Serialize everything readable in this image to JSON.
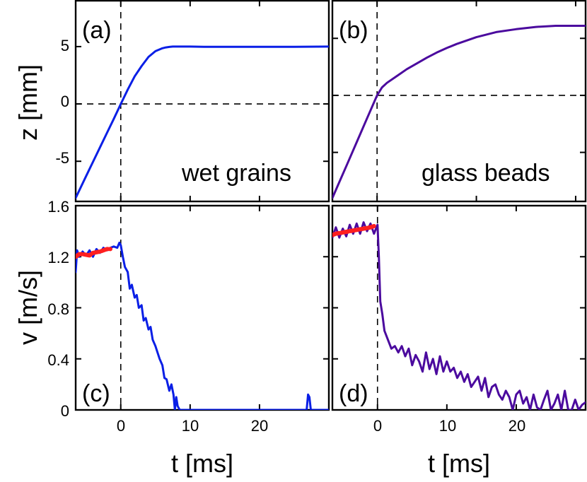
{
  "colors": {
    "wet": "#0a1fe6",
    "glass": "#4b0a9e",
    "fit": "#ff1f1f",
    "frame": "#000000"
  },
  "chart_data": [
    {
      "type": "line",
      "panel": "(a)",
      "annotation": "wet grains",
      "ylabel": "z [mm]",
      "xlabel": "",
      "xlim": [
        -6.5,
        30
      ],
      "ylim": [
        -8.5,
        9
      ],
      "yticks": [
        5,
        0,
        -5
      ],
      "ytick_labels": [
        "5",
        "0",
        "-5"
      ],
      "xticks": [
        0,
        10,
        20
      ],
      "xtick_labels": [
        "",
        "",
        ""
      ],
      "color_key": "wet",
      "reference_lines": {
        "x": 0,
        "y": 0
      },
      "series": [
        {
          "x": [
            -6.5,
            -5,
            -4,
            -3,
            -2,
            -1,
            0,
            1,
            2,
            3,
            4,
            5,
            6,
            6.5,
            7,
            7.5,
            8,
            9,
            10,
            12,
            15,
            20,
            25,
            30
          ],
          "y": [
            -8.2,
            -6.3,
            -5.05,
            -3.8,
            -2.55,
            -1.3,
            0,
            1.25,
            2.4,
            3.3,
            4.1,
            4.6,
            4.85,
            4.93,
            4.97,
            5.0,
            5.0,
            5.0,
            5.0,
            4.98,
            4.98,
            4.98,
            4.98,
            5.0
          ]
        }
      ]
    },
    {
      "type": "line",
      "panel": "(b)",
      "annotation": "glass beads",
      "ylabel": "",
      "xlabel": "",
      "xlim": [
        -4.5,
        21
      ],
      "ylim": [
        -9.3,
        8.3
      ],
      "yticks": [
        5,
        0,
        -5
      ],
      "ytick_labels": [
        "",
        "",
        ""
      ],
      "xticks": [
        0,
        10,
        20
      ],
      "xtick_labels": [
        "",
        "",
        ""
      ],
      "color_key": "glass",
      "reference_lines": {
        "x": 0,
        "y": 0
      },
      "series": [
        {
          "x": [
            -4.5,
            -4,
            -3,
            -2,
            -1,
            0,
            0.5,
            1,
            2,
            3,
            4,
            5,
            6,
            7,
            8,
            10,
            12,
            14,
            16,
            18,
            19,
            21
          ],
          "y": [
            -9.0,
            -8.0,
            -6.0,
            -4.0,
            -2.0,
            0,
            0.7,
            1.1,
            1.7,
            2.3,
            2.8,
            3.3,
            3.75,
            4.15,
            4.5,
            5.1,
            5.55,
            5.8,
            6.0,
            6.1,
            6.1,
            6.1
          ]
        }
      ]
    },
    {
      "type": "line",
      "panel": "(c)",
      "annotation": "",
      "ylabel": "v [m/s]",
      "xlabel": "t [ms]",
      "xlim": [
        -6.5,
        30
      ],
      "ylim": [
        0,
        1.6
      ],
      "yticks": [
        0,
        0.4,
        0.8,
        1.2,
        1.6
      ],
      "ytick_labels": [
        "0",
        "0.4",
        "0.8",
        "1.2",
        "1.6"
      ],
      "xticks": [
        0,
        10,
        20
      ],
      "xtick_labels": [
        "0",
        "10",
        "20"
      ],
      "color_key": "wet",
      "reference_lines": {
        "x": 0
      },
      "series": [
        {
          "x": [
            -6.5,
            -6.3,
            -6,
            -5.5,
            -5,
            -4.5,
            -4,
            -3.5,
            -3,
            -2.5,
            -2,
            -1.5,
            -1,
            -0.5,
            -0.2,
            0,
            0.3,
            0.6,
            1,
            1.3,
            1.6,
            2,
            2.3,
            2.6,
            3,
            3.3,
            3.6,
            4,
            4.3,
            4.6,
            5,
            5.3,
            5.6,
            6,
            6.3,
            6.6,
            7,
            7.3,
            7.6,
            7.8,
            8,
            8.2,
            8.5,
            9,
            10,
            11,
            12,
            15,
            20,
            25,
            26.8,
            27,
            27.2,
            27.4,
            30
          ],
          "y": [
            1.08,
            1.25,
            1.2,
            1.24,
            1.21,
            1.25,
            1.2,
            1.26,
            1.23,
            1.27,
            1.25,
            1.27,
            1.28,
            1.27,
            1.31,
            1.29,
            1.2,
            1.12,
            1.08,
            0.95,
            0.98,
            0.88,
            0.9,
            0.8,
            0.82,
            0.7,
            0.72,
            0.63,
            0.65,
            0.55,
            0.5,
            0.45,
            0.4,
            0.35,
            0.25,
            0.24,
            0.15,
            0.2,
            0.12,
            0,
            0.1,
            0.03,
            0,
            0,
            0,
            0,
            0,
            0,
            0,
            0,
            0,
            0.12,
            0.1,
            0,
            0
          ]
        },
        {
          "name": "",
          "color_key": "fit",
          "x": [
            -6.5,
            -6,
            -5.5,
            -4.5,
            -4,
            -3,
            -2.5,
            -2,
            -1.5
          ],
          "y": [
            1.2,
            1.22,
            1.22,
            1.21,
            1.23,
            1.24,
            1.25,
            1.26,
            1.26
          ]
        }
      ]
    },
    {
      "type": "line",
      "panel": "(d)",
      "annotation": "",
      "ylabel": "",
      "xlabel": "t [ms]",
      "xlim": [
        -6.5,
        30
      ],
      "ylim": [
        0,
        1.6
      ],
      "yticks": [
        0,
        0.4,
        0.8,
        1.2,
        1.6
      ],
      "ytick_labels": [
        "",
        "",
        "",
        "",
        ""
      ],
      "xticks": [
        0,
        10,
        20
      ],
      "xtick_labels": [
        "0",
        "10",
        "20"
      ],
      "color_key": "glass",
      "reference_lines": {
        "x": 0
      },
      "series": [
        {
          "x": [
            -6.5,
            -6,
            -5.5,
            -5,
            -4.5,
            -4,
            -3.5,
            -3,
            -2.5,
            -2,
            -1.5,
            -1,
            -0.5,
            0,
            0.2,
            0.4,
            0.7,
            1,
            1.5,
            2,
            2.5,
            3,
            3.5,
            4,
            4.5,
            5,
            5.5,
            6,
            6.5,
            7,
            7.5,
            8,
            8.5,
            9,
            9.5,
            10,
            10.5,
            11,
            11.5,
            12,
            12.5,
            13,
            13.5,
            14,
            14.5,
            15,
            15.5,
            16,
            16.5,
            17,
            17.5,
            18,
            18.5,
            19,
            19.5,
            20,
            20.5,
            21,
            21.5,
            22,
            22.5,
            23,
            23.5,
            24,
            24.5,
            25,
            25.5,
            26,
            26.5,
            27,
            27.5,
            28,
            28.5,
            29,
            29.5,
            30
          ],
          "y": [
            1.35,
            1.43,
            1.35,
            1.42,
            1.36,
            1.45,
            1.38,
            1.46,
            1.38,
            1.47,
            1.4,
            1.46,
            1.38,
            1.45,
            1.2,
            0.85,
            0.75,
            0.62,
            0.55,
            0.48,
            0.5,
            0.45,
            0.5,
            0.42,
            0.48,
            0.35,
            0.43,
            0.38,
            0.3,
            0.45,
            0.32,
            0.4,
            0.28,
            0.42,
            0.3,
            0.38,
            0.3,
            0.33,
            0.25,
            0.3,
            0.22,
            0.28,
            0.18,
            0.22,
            0.26,
            0.15,
            0.25,
            0.1,
            0.18,
            0.2,
            0.12,
            0.08,
            0.15,
            0.1,
            0,
            0.12,
            0.15,
            0.05,
            0.1,
            0,
            0.12,
            0.02,
            0,
            0.08,
            0.15,
            0,
            0.05,
            0.12,
            0,
            0.15,
            0,
            0,
            0.08,
            0,
            0.04,
            0.06
          ]
        },
        {
          "name": "",
          "color_key": "fit",
          "x": [
            -6.5,
            -6,
            -5,
            -4,
            -3,
            -2,
            -1,
            -0.5
          ],
          "y": [
            1.37,
            1.38,
            1.39,
            1.4,
            1.41,
            1.42,
            1.43,
            1.44
          ]
        }
      ]
    }
  ]
}
